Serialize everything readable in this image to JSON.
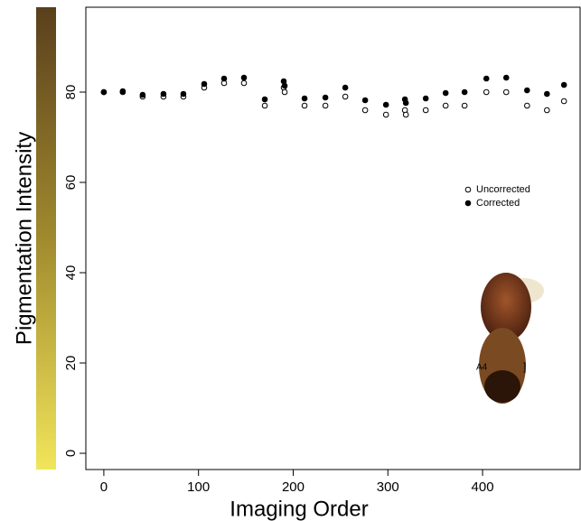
{
  "chart_data": {
    "type": "scatter",
    "xlabel": "Imaging Order",
    "ylabel": "Pigmentation Intensity",
    "x": [
      0,
      20,
      41,
      63,
      84,
      106,
      127,
      148,
      170,
      190,
      191,
      212,
      234,
      255,
      276,
      298,
      318,
      319,
      340,
      361,
      381,
      404,
      425,
      447,
      468,
      486
    ],
    "series": [
      {
        "name": "Uncorrected",
        "color": "#000000",
        "marker_fill": "#ffffff",
        "values": [
          80,
          80,
          79,
          79,
          79,
          81,
          82,
          82,
          77,
          81,
          80,
          77,
          77,
          79,
          76,
          75,
          76,
          75,
          76,
          77,
          77,
          80,
          80,
          77,
          76,
          78
        ]
      },
      {
        "name": "Corrected",
        "color": "#000000",
        "marker_fill": "#000000",
        "values": [
          80,
          80.2,
          79.4,
          79.6,
          79.6,
          81.8,
          83,
          83.2,
          78.4,
          82.4,
          81.4,
          78.6,
          78.8,
          81,
          78.2,
          77.2,
          78.4,
          77.6,
          78.6,
          79.8,
          80,
          83,
          83.2,
          80.4,
          79.6,
          81.6
        ]
      }
    ],
    "xlim": [
      -19,
      503
    ],
    "ylim": [
      -3.6,
      98.8
    ],
    "xticks": [
      0,
      100,
      200,
      300,
      400
    ],
    "yticks": [
      0,
      20,
      40,
      60,
      80
    ],
    "grid": false,
    "legend": "right",
    "annotations": [
      "A4"
    ]
  }
}
